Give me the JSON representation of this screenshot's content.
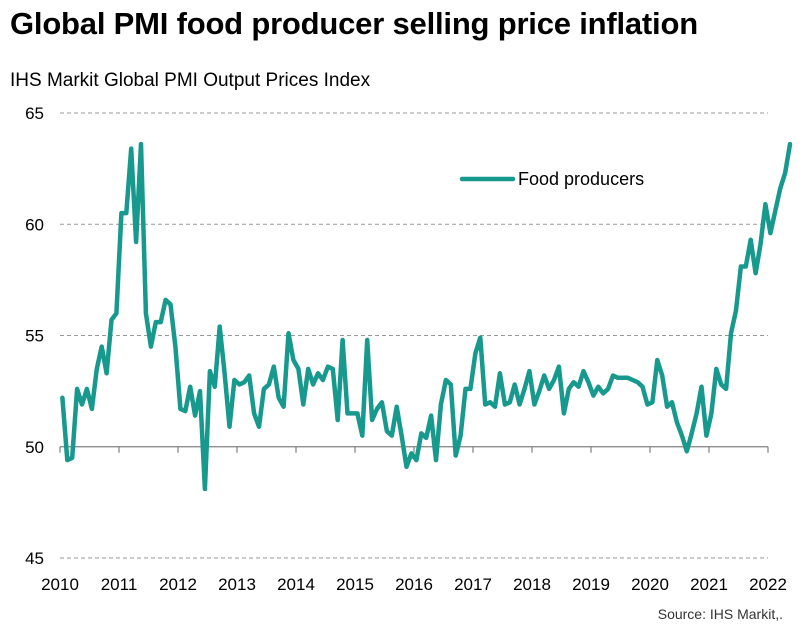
{
  "title": "Global PMI food producer selling price inflation",
  "subtitle": "IHS Markit  Global PMI Output Prices Index",
  "source": "Source: IHS Markit,.",
  "colors": {
    "series": "#17998d",
    "grid": "#999999",
    "axis": "#808080"
  },
  "chart_data": {
    "type": "line",
    "title": "Global PMI food producer selling price inflation",
    "ylabel": "IHS Markit  Global PMI Output Prices Index",
    "xlabel": "",
    "ylim": [
      45,
      65
    ],
    "yticks": [
      45,
      50,
      55,
      60,
      65
    ],
    "xlim": [
      2010,
      2022
    ],
    "xticks": [
      "2010",
      "2011",
      "2012",
      "2013",
      "2014",
      "2015",
      "2016",
      "2017",
      "2018",
      "2019",
      "2020",
      "2021",
      "2022"
    ],
    "grid": "horizontal dashed",
    "legend": "top-right",
    "series": [
      {
        "name": "Food producers",
        "start": "2010-01",
        "frequency": "monthly",
        "values": [
          52.2,
          49.4,
          49.5,
          52.6,
          51.9,
          52.6,
          51.7,
          53.5,
          54.5,
          53.3,
          55.7,
          56.0,
          60.5,
          60.5,
          63.4,
          59.2,
          63.6,
          56.0,
          54.5,
          55.6,
          55.6,
          56.6,
          56.4,
          54.5,
          51.7,
          51.6,
          52.7,
          51.4,
          52.5,
          48.1,
          53.4,
          52.7,
          55.4,
          53.3,
          50.9,
          53.0,
          52.8,
          52.9,
          53.2,
          51.5,
          50.9,
          52.6,
          52.8,
          53.6,
          52.2,
          51.8,
          55.1,
          53.9,
          53.5,
          51.9,
          53.5,
          52.8,
          53.3,
          53.0,
          53.6,
          53.5,
          51.2,
          54.8,
          51.5,
          51.5,
          51.5,
          50.5,
          54.8,
          51.2,
          51.7,
          52.0,
          50.7,
          50.5,
          51.8,
          50.5,
          49.1,
          49.7,
          49.4,
          50.6,
          50.4,
          51.4,
          49.4,
          51.9,
          53.0,
          52.8,
          49.6,
          50.5,
          52.6,
          52.6,
          54.2,
          54.9,
          51.9,
          52.0,
          51.8,
          53.3,
          51.9,
          52.0,
          52.8,
          51.9,
          52.6,
          53.4,
          51.9,
          52.5,
          53.2,
          52.6,
          53.0,
          53.6,
          51.5,
          52.6,
          52.9,
          52.7,
          53.4,
          52.9,
          52.3,
          52.7,
          52.4,
          52.6,
          53.2,
          53.1,
          53.1,
          53.1,
          53.0,
          52.9,
          52.7,
          51.9,
          52.0,
          53.9,
          53.2,
          51.8,
          52.0,
          51.1,
          50.5,
          49.8,
          50.6,
          51.5,
          52.7,
          50.5,
          51.5,
          53.5,
          52.8,
          52.6,
          55.1,
          56.1,
          58.1,
          58.1,
          59.3,
          57.8,
          59.1,
          60.9,
          59.6,
          60.6,
          61.6,
          62.3,
          63.6
        ]
      }
    ]
  }
}
